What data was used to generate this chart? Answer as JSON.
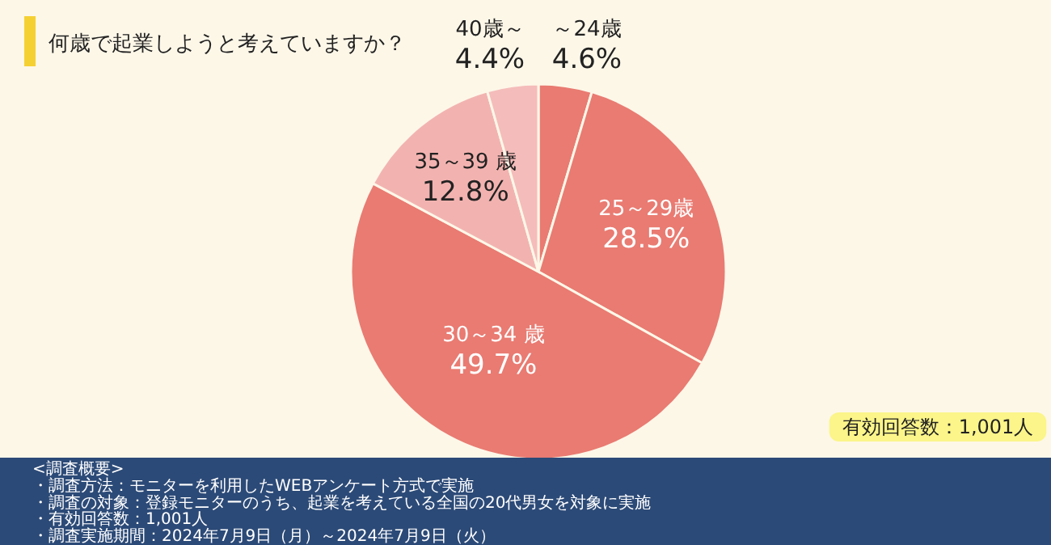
{
  "chart_data": {
    "type": "pie",
    "title": "何歳で起業しようと考えていますか？",
    "categories": [
      "～24歳",
      "25～29歳",
      "30～34 歳",
      "35～39 歳",
      "40歳～"
    ],
    "values": [
      4.6,
      28.5,
      49.7,
      12.8,
      4.4
    ],
    "value_labels": [
      "4.6%",
      "28.5%",
      "49.7%",
      "12.8%",
      "4.4%"
    ],
    "colors": [
      "#e97b72",
      "#e97b72",
      "#e97b72",
      "#f2b3b0",
      "#f4bcba"
    ],
    "annotations": [
      "有効回答数：1,001人",
      "<調査概要>",
      "・調査方法：モニターを利用したWEBアンケート方式で実施",
      "・調査の対象：登録モニターのうち、起業を考えている全国の20代男女を対象に実施",
      "・有効回答数：1,001人",
      "・調査実施期間：2024年7月9日（月）～2024年7月9日（火）"
    ]
  }
}
